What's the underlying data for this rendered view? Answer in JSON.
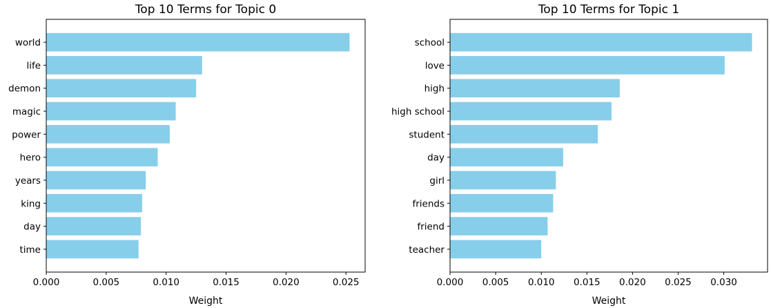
{
  "chart_data": [
    {
      "type": "bar",
      "orientation": "horizontal",
      "title": "Top 10 Terms for Topic 0",
      "xlabel": "Weight",
      "ylabel": "",
      "categories": [
        "world",
        "life",
        "demon",
        "magic",
        "power",
        "hero",
        "years",
        "king",
        "day",
        "time"
      ],
      "values": [
        0.0253,
        0.013,
        0.0125,
        0.0108,
        0.0103,
        0.0093,
        0.0083,
        0.008,
        0.0079,
        0.0077
      ],
      "xlim": [
        0,
        0.0266
      ],
      "xticks": [
        0,
        0.005,
        0.01,
        0.015,
        0.02,
        0.025
      ],
      "xtick_labels": [
        "0.000",
        "0.005",
        "0.010",
        "0.015",
        "0.020",
        "0.025"
      ],
      "color": "#87ceeb",
      "grid": false
    },
    {
      "type": "bar",
      "orientation": "horizontal",
      "title": "Top 10 Terms for Topic 1",
      "xlabel": "Weight",
      "ylabel": "",
      "categories": [
        "school",
        "love",
        "high",
        "high school",
        "student",
        "day",
        "girl",
        "friends",
        "friend",
        "teacher"
      ],
      "values": [
        0.0331,
        0.0301,
        0.0186,
        0.0177,
        0.0162,
        0.0124,
        0.0116,
        0.0113,
        0.0107,
        0.01
      ],
      "xlim": [
        0,
        0.0348
      ],
      "xticks": [
        0,
        0.005,
        0.01,
        0.015,
        0.02,
        0.025,
        0.03
      ],
      "xtick_labels": [
        "0.000",
        "0.005",
        "0.010",
        "0.015",
        "0.020",
        "0.025",
        "0.030"
      ],
      "color": "#87ceeb",
      "grid": false
    }
  ]
}
